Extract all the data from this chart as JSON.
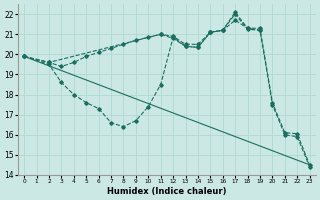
{
  "background_color": "#cce8e4",
  "grid_color": "#b0d8d4",
  "line_color": "#1a6e60",
  "xlabel": "Humidex (Indice chaleur)",
  "ylim": [
    14,
    22.5
  ],
  "xlim": [
    -0.5,
    23.5
  ],
  "yticks": [
    14,
    15,
    16,
    17,
    18,
    19,
    20,
    21,
    22
  ],
  "xticks": [
    0,
    1,
    2,
    3,
    4,
    5,
    6,
    7,
    8,
    9,
    10,
    11,
    12,
    13,
    14,
    15,
    16,
    17,
    18,
    19,
    20,
    21,
    22,
    23
  ],
  "lines": [
    {
      "x": [
        0,
        2,
        3,
        4,
        5,
        6,
        7,
        8,
        9,
        10,
        11,
        12,
        13,
        14,
        15,
        16,
        17,
        18,
        19,
        20,
        21,
        22,
        23
      ],
      "y": [
        19.9,
        19.6,
        19.4,
        19.6,
        19.9,
        20.1,
        20.3,
        20.5,
        20.7,
        20.85,
        21.0,
        20.9,
        20.5,
        20.5,
        21.1,
        21.2,
        22.1,
        21.3,
        21.3,
        17.6,
        16.1,
        16.05,
        14.5
      ],
      "marker": true
    },
    {
      "x": [
        0,
        2,
        11,
        12,
        13,
        14,
        15,
        16,
        17,
        18,
        19
      ],
      "y": [
        19.9,
        19.6,
        21.0,
        20.8,
        20.4,
        20.35,
        21.1,
        21.2,
        21.7,
        21.3,
        21.2
      ],
      "marker": true
    },
    {
      "x": [
        0,
        2,
        3,
        4,
        5,
        6,
        7,
        8,
        9,
        10,
        11,
        12,
        13,
        14,
        15,
        16,
        17,
        18,
        19,
        20,
        21,
        22,
        23
      ],
      "y": [
        19.9,
        19.5,
        18.6,
        18.0,
        17.6,
        17.3,
        16.6,
        16.4,
        16.7,
        17.4,
        18.5,
        20.85,
        20.4,
        20.35,
        21.1,
        21.2,
        22.0,
        21.25,
        21.2,
        17.5,
        16.0,
        15.9,
        14.4
      ],
      "marker": true
    },
    {
      "x": [
        0,
        23
      ],
      "y": [
        19.9,
        14.5
      ],
      "marker": false
    }
  ]
}
